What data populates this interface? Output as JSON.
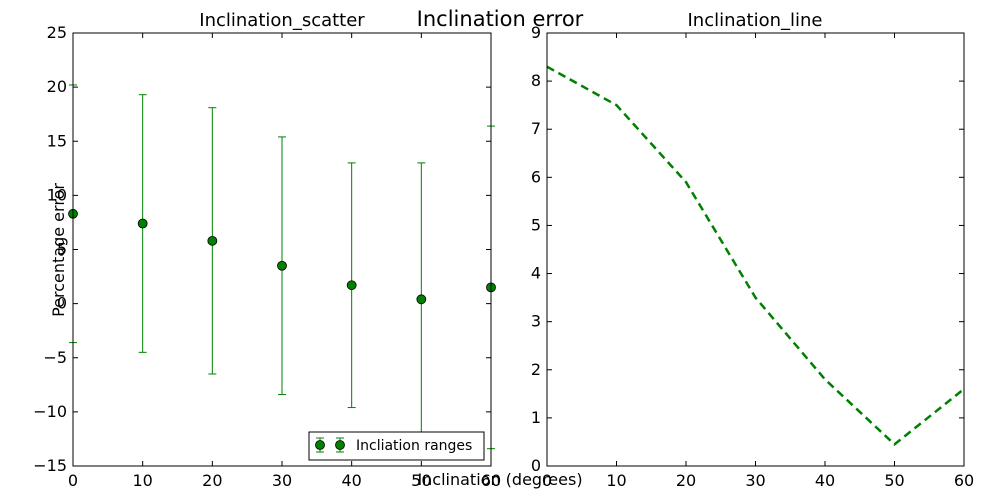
{
  "figure": {
    "suptitle": "Inclination error",
    "xlabel": "Inclination (degrees)",
    "ylabel": "Percentage error"
  },
  "colors": {
    "series": "#008000",
    "axes": "#000000"
  },
  "chart_data": [
    {
      "type": "scatter",
      "title": "Inclination_scatter",
      "xlim": [
        0,
        60
      ],
      "ylim": [
        -15,
        25
      ],
      "xticks": [
        0,
        10,
        20,
        30,
        40,
        50,
        60
      ],
      "yticks": [
        -15,
        -10,
        -5,
        0,
        5,
        10,
        15,
        20,
        25
      ],
      "grid": false,
      "legend": {
        "placement": "lower-right",
        "entries": [
          "Incliation ranges"
        ]
      },
      "series": [
        {
          "name": "Incliation ranges",
          "x": [
            0,
            10,
            20,
            30,
            40,
            50,
            60
          ],
          "y": [
            8.3,
            7.4,
            5.8,
            3.5,
            1.7,
            0.4,
            1.5
          ],
          "yerr": [
            11.9,
            11.9,
            12.3,
            11.9,
            11.3,
            12.6,
            14.9
          ]
        }
      ]
    },
    {
      "type": "line",
      "title": "Inclination_line",
      "xlim": [
        0,
        60
      ],
      "ylim": [
        0,
        9
      ],
      "xticks": [
        0,
        10,
        20,
        30,
        40,
        50,
        60
      ],
      "yticks": [
        0,
        1,
        2,
        3,
        4,
        5,
        6,
        7,
        8,
        9
      ],
      "grid": false,
      "line_style": "dashed",
      "series": [
        {
          "x": [
            0,
            10,
            20,
            30,
            40,
            50,
            60
          ],
          "y": [
            8.3,
            7.5,
            5.9,
            3.5,
            1.8,
            0.45,
            1.6
          ]
        }
      ]
    }
  ]
}
